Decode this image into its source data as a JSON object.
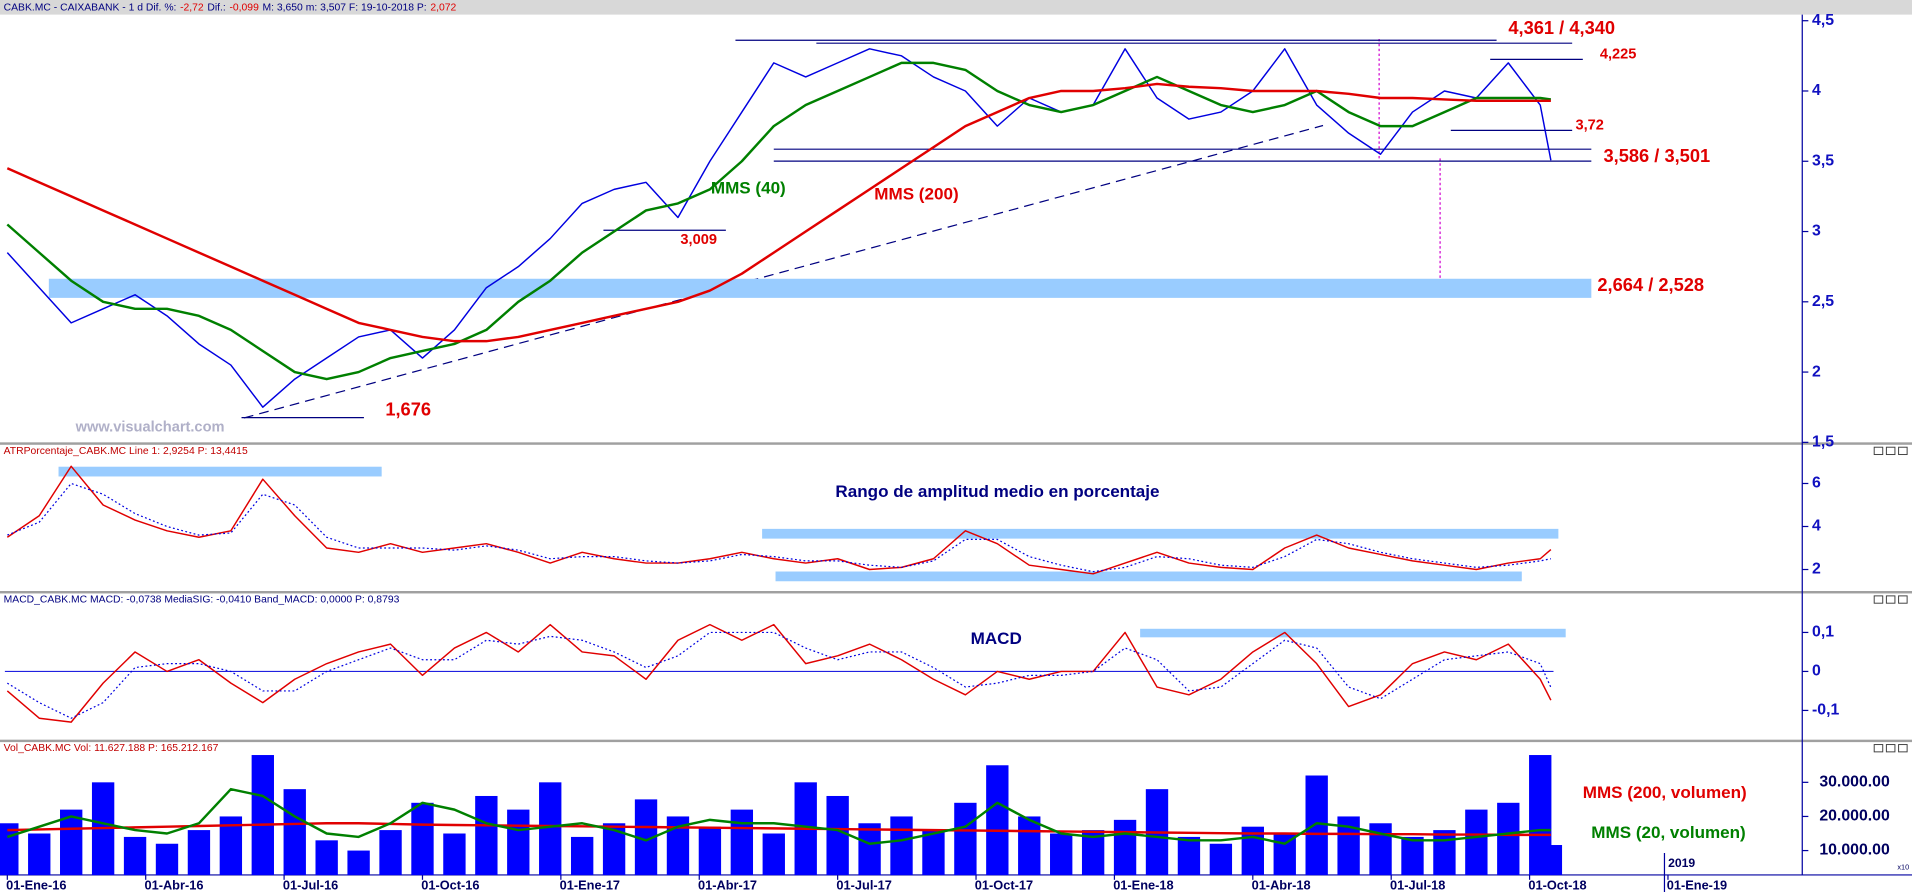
{
  "chart_data": [
    {
      "type": "line",
      "title": [
        {
          "text": "CABK.MC - CAIXABANK - 1 d Dif. %:",
          "color": "#000080"
        },
        {
          "text": "-2,72",
          "color": "#e00000"
        },
        {
          "text": "Dif.:",
          "color": "#000080"
        },
        {
          "text": "-0,099",
          "color": "#e00000"
        },
        {
          "text": "M: 3,650 m: 3,507 F: 19-10-2018 P:",
          "color": "#000080"
        },
        {
          "text": "2,072",
          "color": "#e00000"
        }
      ],
      "ylim": [
        1.5,
        4.5
      ],
      "yticks": [
        {
          "value": 1.5,
          "label": "1,5"
        },
        2,
        {
          "value": 2.5,
          "label": "2,5"
        },
        3,
        {
          "value": 3.5,
          "label": "3,5"
        },
        4,
        {
          "value": 4.5,
          "label": "4,5"
        }
      ],
      "series": [
        {
          "color": "#0000e0",
          "values": [
            2.85,
            2.6,
            2.35,
            2.45,
            2.55,
            2.4,
            2.2,
            2.05,
            1.75,
            1.95,
            2.1,
            2.25,
            2.3,
            2.1,
            2.3,
            2.6,
            2.75,
            2.95,
            3.2,
            3.3,
            3.35,
            3.1,
            3.5,
            3.85,
            4.2,
            4.1,
            4.2,
            4.3,
            4.25,
            4.1,
            4.0,
            3.75,
            3.95,
            3.85,
            3.9,
            4.3,
            3.95,
            3.8,
            3.85,
            4.0,
            4.3,
            3.9,
            3.7,
            3.55,
            3.85,
            4.0,
            3.95,
            4.2,
            3.9,
            3.507
          ]
        },
        {
          "name": "MMS (40)",
          "color": "#008000",
          "values": [
            3.05,
            2.85,
            2.65,
            2.5,
            2.45,
            2.45,
            2.4,
            2.3,
            2.15,
            2.0,
            1.95,
            2.0,
            2.1,
            2.15,
            2.2,
            2.3,
            2.5,
            2.65,
            2.85,
            3.0,
            3.15,
            3.2,
            3.3,
            3.5,
            3.75,
            3.9,
            4.0,
            4.1,
            4.2,
            4.2,
            4.15,
            4.0,
            3.9,
            3.85,
            3.9,
            4.0,
            4.1,
            4.0,
            3.9,
            3.85,
            3.9,
            4.0,
            3.85,
            3.75,
            3.75,
            3.85,
            3.95,
            3.95,
            3.95,
            3.94
          ]
        },
        {
          "name": "MMS (200)",
          "color": "#e00000",
          "values": [
            3.45,
            3.35,
            3.25,
            3.15,
            3.05,
            2.95,
            2.85,
            2.75,
            2.65,
            2.55,
            2.45,
            2.35,
            2.3,
            2.25,
            2.22,
            2.22,
            2.25,
            2.3,
            2.35,
            2.4,
            2.45,
            2.5,
            2.58,
            2.7,
            2.85,
            3.0,
            3.15,
            3.3,
            3.45,
            3.6,
            3.75,
            3.85,
            3.95,
            4.0,
            4.0,
            4.02,
            4.05,
            4.03,
            4.02,
            4.0,
            4.0,
            4.0,
            3.98,
            3.95,
            3.95,
            3.94,
            3.93,
            3.93,
            3.93,
            3.93
          ]
        }
      ],
      "levels": [
        {
          "label": "4,361 / 4,340",
          "values": [
            4.361,
            4.34
          ]
        },
        {
          "label": "4,225",
          "values": [
            4.225
          ]
        },
        {
          "label": "3,72",
          "values": [
            3.72
          ]
        },
        {
          "label": "3,586 / 3,501",
          "values": [
            3.586,
            3.501
          ]
        },
        {
          "label": "3,009",
          "values": [
            3.009
          ]
        },
        {
          "label": "1,676",
          "values": [
            1.676
          ]
        },
        {
          "label": "2,664 / 2,528",
          "values": [
            2.664,
            2.528
          ]
        }
      ],
      "watermark": "www.visualchart.com"
    },
    {
      "type": "line",
      "title": [
        {
          "text": "ATRPorcentaje_CABK.MC Line 1: 2,9254 P: 13,4415",
          "color": "#c00000"
        }
      ],
      "annotation": "Rango de amplitud medio en porcentaje",
      "ylim": [
        1,
        7.8
      ],
      "yticks": [
        2,
        4,
        6
      ],
      "series": [
        {
          "color": "#e00000",
          "values": [
            3.5,
            4.5,
            6.8,
            5.0,
            4.3,
            3.8,
            3.5,
            3.8,
            6.2,
            4.5,
            3.0,
            2.8,
            3.2,
            2.8,
            3.0,
            3.2,
            2.8,
            2.3,
            2.8,
            2.5,
            2.3,
            2.3,
            2.5,
            2.8,
            2.5,
            2.3,
            2.5,
            2.0,
            2.1,
            2.5,
            3.8,
            3.2,
            2.2,
            2.0,
            1.8,
            2.3,
            2.8,
            2.3,
            2.1,
            2.0,
            3.0,
            3.6,
            3.0,
            2.7,
            2.4,
            2.2,
            2.0,
            2.3,
            2.5,
            2.9254
          ]
        },
        {
          "color": "#0000e0",
          "style": "dotted",
          "values": [
            3.6,
            4.2,
            6.0,
            5.5,
            4.6,
            4.0,
            3.6,
            3.7,
            5.5,
            5.0,
            3.5,
            3.0,
            3.0,
            3.0,
            2.9,
            3.1,
            2.9,
            2.5,
            2.6,
            2.6,
            2.4,
            2.3,
            2.4,
            2.7,
            2.6,
            2.4,
            2.4,
            2.2,
            2.1,
            2.4,
            3.4,
            3.4,
            2.6,
            2.2,
            1.9,
            2.1,
            2.6,
            2.5,
            2.2,
            2.1,
            2.6,
            3.4,
            3.2,
            2.8,
            2.5,
            2.3,
            2.1,
            2.2,
            2.4,
            2.5
          ]
        }
      ]
    },
    {
      "type": "line",
      "title": [
        {
          "text": "MACD_CABK.MC MACD: -0,0738 MediaSIG: -0,0410 Band_MACD: 0,0000 P: 0,8793",
          "color": "#000080"
        }
      ],
      "annotation": "MACD",
      "ylim": [
        -0.175,
        0.2
      ],
      "yticks": [
        {
          "value": 0.1,
          "label": "0,1"
        },
        0,
        {
          "value": -0.1,
          "label": "-0,1"
        }
      ],
      "zero_line": true,
      "series": [
        {
          "color": "#e00000",
          "values": [
            -0.05,
            -0.12,
            -0.13,
            -0.03,
            0.05,
            0.0,
            0.03,
            -0.03,
            -0.08,
            -0.02,
            0.02,
            0.05,
            0.07,
            -0.01,
            0.06,
            0.1,
            0.05,
            0.12,
            0.05,
            0.04,
            -0.02,
            0.08,
            0.12,
            0.08,
            0.12,
            0.02,
            0.04,
            0.07,
            0.03,
            -0.02,
            -0.06,
            0.0,
            -0.02,
            0.0,
            0.0,
            0.1,
            -0.04,
            -0.06,
            -0.02,
            0.05,
            0.1,
            0.02,
            -0.09,
            -0.06,
            0.02,
            0.05,
            0.03,
            0.07,
            -0.02,
            -0.0738
          ]
        },
        {
          "color": "#0000e0",
          "style": "dotted",
          "values": [
            -0.03,
            -0.08,
            -0.12,
            -0.08,
            0.01,
            0.02,
            0.02,
            0.0,
            -0.05,
            -0.05,
            0.0,
            0.03,
            0.06,
            0.03,
            0.03,
            0.08,
            0.07,
            0.09,
            0.08,
            0.05,
            0.01,
            0.04,
            0.1,
            0.1,
            0.1,
            0.06,
            0.03,
            0.05,
            0.05,
            0.01,
            -0.04,
            -0.03,
            -0.01,
            -0.01,
            0.0,
            0.06,
            0.03,
            -0.05,
            -0.04,
            0.02,
            0.08,
            0.06,
            -0.04,
            -0.07,
            -0.02,
            0.03,
            0.04,
            0.05,
            0.02,
            -0.041
          ]
        }
      ]
    },
    {
      "type": "bar",
      "title": [
        {
          "text": "Vol_CABK.MC Vol: 11.627.188 P: 165.212.167",
          "color": "#c00000"
        }
      ],
      "x": [
        0,
        3,
        6,
        9,
        12,
        15,
        18,
        21,
        24,
        27,
        30,
        33,
        36,
        39,
        42,
        45,
        48,
        51,
        54,
        57,
        60,
        63,
        66,
        69,
        72,
        75,
        78,
        81,
        84,
        87,
        90,
        93,
        96,
        99,
        102,
        105,
        108,
        111,
        114,
        117,
        120,
        123,
        126,
        129,
        132,
        135,
        138,
        141,
        144,
        145
      ],
      "xticks": [
        {
          "value": 0,
          "label": "01-Ene-16"
        },
        {
          "value": 13,
          "label": "01-Abr-16"
        },
        {
          "value": 26,
          "label": "01-Jul-16"
        },
        {
          "value": 39,
          "label": "01-Oct-16"
        },
        {
          "value": 52,
          "label": "01-Ene-17"
        },
        {
          "value": 65,
          "label": "01-Abr-17"
        },
        {
          "value": 78,
          "label": "01-Jul-17"
        },
        {
          "value": 91,
          "label": "01-Oct-17"
        },
        {
          "value": 104,
          "label": "01-Ene-18"
        },
        {
          "value": 117,
          "label": "01-Abr-18"
        },
        {
          "value": 130,
          "label": "01-Jul-18"
        },
        {
          "value": 143,
          "label": "01-Oct-18"
        },
        {
          "value": 156,
          "label": "01-Ene-19"
        }
      ],
      "year_label": "2019",
      "scale_note": "x10",
      "ylim": [
        2857,
        41786
      ],
      "yticks": [
        {
          "value": 10000,
          "label": "10.000.00"
        },
        {
          "value": 20000,
          "label": "20.000.00"
        },
        {
          "value": 30000,
          "label": "30.000.00"
        }
      ],
      "series": [
        {
          "color": "#0000ff",
          "values": [
            18000,
            15000,
            22000,
            30000,
            14000,
            12000,
            16000,
            20000,
            38000,
            28000,
            13000,
            10000,
            16000,
            24000,
            15000,
            26000,
            22000,
            30000,
            14000,
            18000,
            25000,
            20000,
            17000,
            22000,
            15000,
            30000,
            26000,
            18000,
            20000,
            16000,
            24000,
            35000,
            20000,
            15000,
            16000,
            19000,
            28000,
            14000,
            12000,
            17000,
            15000,
            32000,
            20000,
            18000,
            14000,
            16000,
            22000,
            24000,
            38000,
            11627.188
          ]
        },
        {
          "name": "MMS (200, volumen)",
          "type": "line",
          "color": "#e00000",
          "values": [
            16000,
            16200,
            16400,
            16600,
            16800,
            17000,
            17200,
            17400,
            17600,
            17800,
            18000,
            18000,
            17800,
            17600,
            17500,
            17400,
            17300,
            17200,
            17100,
            17000,
            16900,
            16800,
            16700,
            16600,
            16500,
            16400,
            16300,
            16200,
            16100,
            16000,
            15900,
            15800,
            15700,
            15600,
            15500,
            15400,
            15300,
            15200,
            15100,
            15000,
            15000,
            14900,
            14900,
            14800,
            14800,
            14700,
            14700,
            14600,
            14600,
            14600
          ]
        },
        {
          "name": "MMS (20, volumen)",
          "type": "line",
          "color": "#008000",
          "values": [
            14000,
            17000,
            20000,
            18000,
            16000,
            15000,
            18000,
            28000,
            26000,
            20000,
            15000,
            14000,
            18000,
            24000,
            22000,
            18000,
            16000,
            17000,
            18000,
            16000,
            13000,
            17000,
            19000,
            18000,
            18000,
            17000,
            16000,
            12000,
            13000,
            15000,
            17000,
            24000,
            19000,
            15000,
            14000,
            15000,
            14000,
            13000,
            13000,
            14000,
            12000,
            18000,
            17000,
            15000,
            13000,
            13000,
            14000,
            15000,
            16000,
            16000
          ]
        }
      ]
    }
  ]
}
